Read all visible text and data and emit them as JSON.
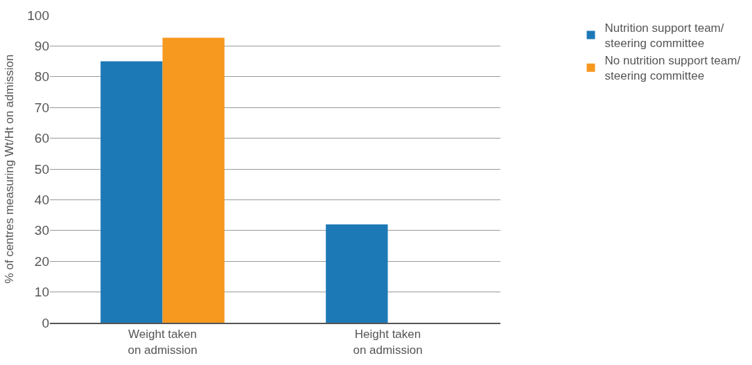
{
  "chart_data": {
    "type": "bar",
    "ylabel": "% of centres measuring Wt/Ht on admission",
    "categories": [
      "Weight taken\non admission",
      "Height taken\non admission"
    ],
    "series": [
      {
        "name": "Nutrition support team/\nsteering committee",
        "color": "#1d79b6",
        "values": [
          85,
          32
        ]
      },
      {
        "name": "No nutrition support team/\nsteering committee",
        "color": "#f7981f",
        "values": [
          92.7,
          null
        ]
      }
    ],
    "ylim": [
      0,
      100
    ],
    "yticks": [
      0,
      10,
      20,
      30,
      40,
      50,
      60,
      70,
      80,
      90,
      100
    ],
    "grid": "y",
    "legend": "top right"
  }
}
